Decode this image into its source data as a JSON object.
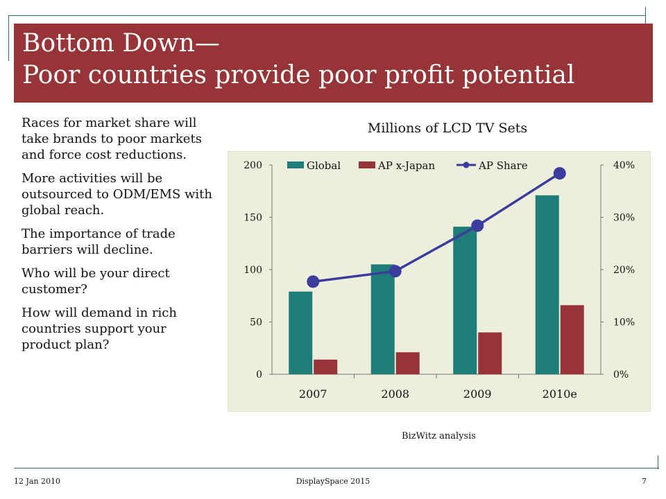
{
  "slide": {
    "title_line1": "Bottom Down—",
    "title_line2": "Poor countries provide poor profit potential",
    "bullets": [
      "Races for market share will take brands to poor markets and force cost reductions.",
      "More activities will be outsourced to ODM/EMS with global reach.",
      "The importance of trade barriers will decline.",
      "Who will be your direct customer?",
      "How will demand in rich countries support your product plan?"
    ],
    "source": "BizWitz analysis",
    "footer": {
      "date": "12 Jan 2010",
      "center": "DisplaySpace 2015",
      "page": "7"
    }
  },
  "colors": {
    "title_bg": "#963437",
    "chart_bg": "#eeeedd",
    "global": "#1e7d79",
    "ap_x_japan": "#963437",
    "ap_share": "#3a3d9c",
    "frame": "#2f6f73"
  },
  "chart_data": {
    "type": "bar",
    "title": "Millions of LCD TV Sets",
    "categories": [
      "2007",
      "2008",
      "2009",
      "2010e"
    ],
    "series": [
      {
        "name": "Global",
        "type": "bar",
        "axis": "left",
        "values": [
          79,
          105,
          141,
          171
        ]
      },
      {
        "name": "AP x-Japan",
        "type": "bar",
        "axis": "left",
        "values": [
          14,
          21,
          40,
          66
        ]
      },
      {
        "name": "AP Share",
        "type": "line",
        "axis": "right",
        "values": [
          17.7,
          19.7,
          28.4,
          38.4
        ]
      }
    ],
    "y_left": {
      "ylim": [
        0,
        200
      ],
      "ticks": [
        "0",
        "50",
        "100",
        "150",
        "200"
      ]
    },
    "y_right": {
      "ylim": [
        0,
        40
      ],
      "ticks": [
        "0%",
        "10%",
        "20%",
        "30%",
        "40%"
      ]
    },
    "grid": false,
    "legend": "top"
  }
}
